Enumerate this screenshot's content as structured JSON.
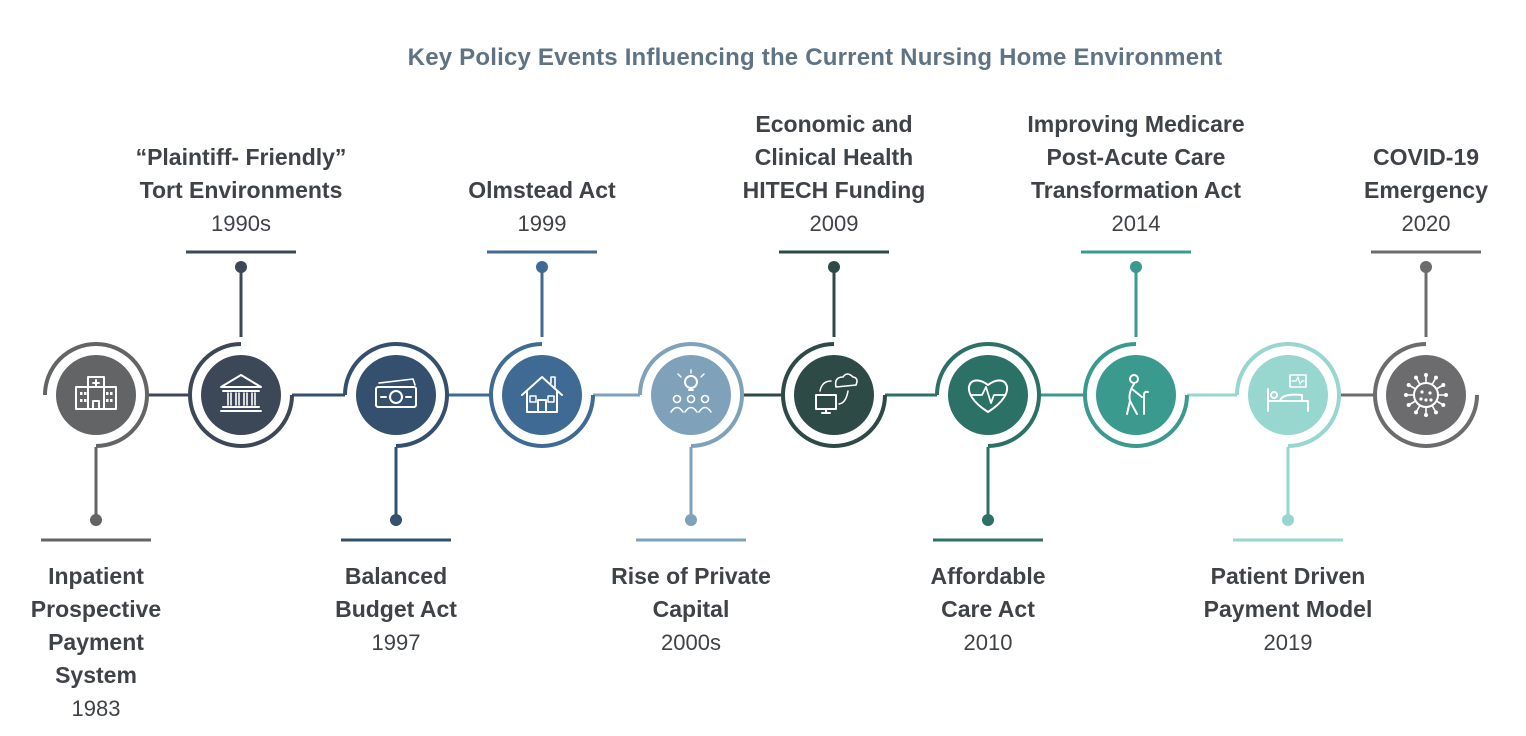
{
  "title": "Key Policy Events Influencing the Current Nursing Home Environment",
  "events": [
    {
      "name": "Inpatient\nProspective\nPayment\nSystem",
      "year": "1983",
      "color": "#636466",
      "icon": "hospital-icon",
      "side": "bottom"
    },
    {
      "name": "“Plaintiff- Friendly”\nTort Environments",
      "year": "1990s",
      "color": "#3c4758",
      "icon": "courthouse-icon",
      "side": "top"
    },
    {
      "name": "Balanced\nBudget Act",
      "year": "1997",
      "color": "#34506e",
      "icon": "money-icon",
      "side": "bottom"
    },
    {
      "name": "Olmstead Act",
      "year": "1999",
      "color": "#3e6a94",
      "icon": "house-icon",
      "side": "top"
    },
    {
      "name": "Rise of Private\nCapital",
      "year": "2000s",
      "color": "#7fa2ba",
      "icon": "people-idea-icon",
      "side": "bottom"
    },
    {
      "name": "Economic and\nClinical Health\nHITECH Funding",
      "year": "2009",
      "color": "#2d4a47",
      "icon": "cloud-computer-icon",
      "side": "top"
    },
    {
      "name": "Affordable\nCare Act",
      "year": "2010",
      "color": "#2b7166",
      "icon": "heart-pulse-icon",
      "side": "bottom"
    },
    {
      "name": "Improving Medicare\nPost-Acute Care\nTransformation Act",
      "year": "2014",
      "color": "#3a9a8e",
      "icon": "elderly-person-icon",
      "side": "top"
    },
    {
      "name": "Patient Driven\nPayment Model",
      "year": "2019",
      "color": "#98d6d0",
      "icon": "hospital-bed-icon",
      "side": "bottom"
    },
    {
      "name": "COVID-19\nEmergency",
      "year": "2020",
      "color": "#6c6c6e",
      "icon": "virus-icon",
      "side": "top"
    }
  ]
}
